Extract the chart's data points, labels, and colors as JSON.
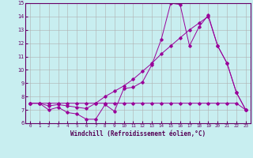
{
  "xlabel": "Windchill (Refroidissement éolien,°C)",
  "xlim": [
    -0.5,
    23.5
  ],
  "ylim": [
    6,
    15
  ],
  "yticks": [
    6,
    7,
    8,
    9,
    10,
    11,
    12,
    13,
    14,
    15
  ],
  "xticks": [
    0,
    1,
    2,
    3,
    4,
    5,
    6,
    7,
    8,
    9,
    10,
    11,
    12,
    13,
    14,
    15,
    16,
    17,
    18,
    19,
    20,
    21,
    22,
    23
  ],
  "bg_color": "#c8eef0",
  "grid_color": "#b0b0b0",
  "line_color": "#990099",
  "flat_x": [
    0,
    1,
    2,
    3,
    4,
    5,
    6,
    7,
    8,
    9,
    10,
    11,
    12,
    13,
    14,
    15,
    16,
    17,
    18,
    19,
    20,
    21,
    22,
    23
  ],
  "flat_y": [
    7.5,
    7.5,
    7.5,
    7.5,
    7.5,
    7.5,
    7.5,
    7.5,
    7.5,
    7.5,
    7.5,
    7.5,
    7.5,
    7.5,
    7.5,
    7.5,
    7.5,
    7.5,
    7.5,
    7.5,
    7.5,
    7.5,
    7.5,
    7.0
  ],
  "jagged_x": [
    0,
    1,
    2,
    3,
    4,
    5,
    6,
    7,
    8,
    9,
    10,
    11,
    12,
    13,
    14,
    15,
    16,
    17,
    18,
    19,
    20,
    21,
    22,
    23
  ],
  "jagged_y": [
    7.5,
    7.5,
    7.0,
    7.2,
    6.8,
    6.7,
    6.3,
    6.3,
    7.4,
    6.9,
    8.6,
    8.7,
    9.1,
    10.4,
    12.3,
    15.0,
    14.9,
    11.8,
    13.2,
    14.1,
    11.8,
    10.5,
    8.3,
    7.0
  ],
  "smooth_x": [
    0,
    1,
    2,
    3,
    4,
    5,
    6,
    7,
    8,
    9,
    10,
    11,
    12,
    13,
    14,
    15,
    16,
    17,
    18,
    19,
    20,
    21,
    22,
    23
  ],
  "smooth_y": [
    7.5,
    7.5,
    7.3,
    7.4,
    7.3,
    7.2,
    7.1,
    7.5,
    8.0,
    8.4,
    8.8,
    9.3,
    9.9,
    10.5,
    11.2,
    11.8,
    12.4,
    13.0,
    13.5,
    14.0,
    11.8,
    10.5,
    8.3,
    7.0
  ]
}
